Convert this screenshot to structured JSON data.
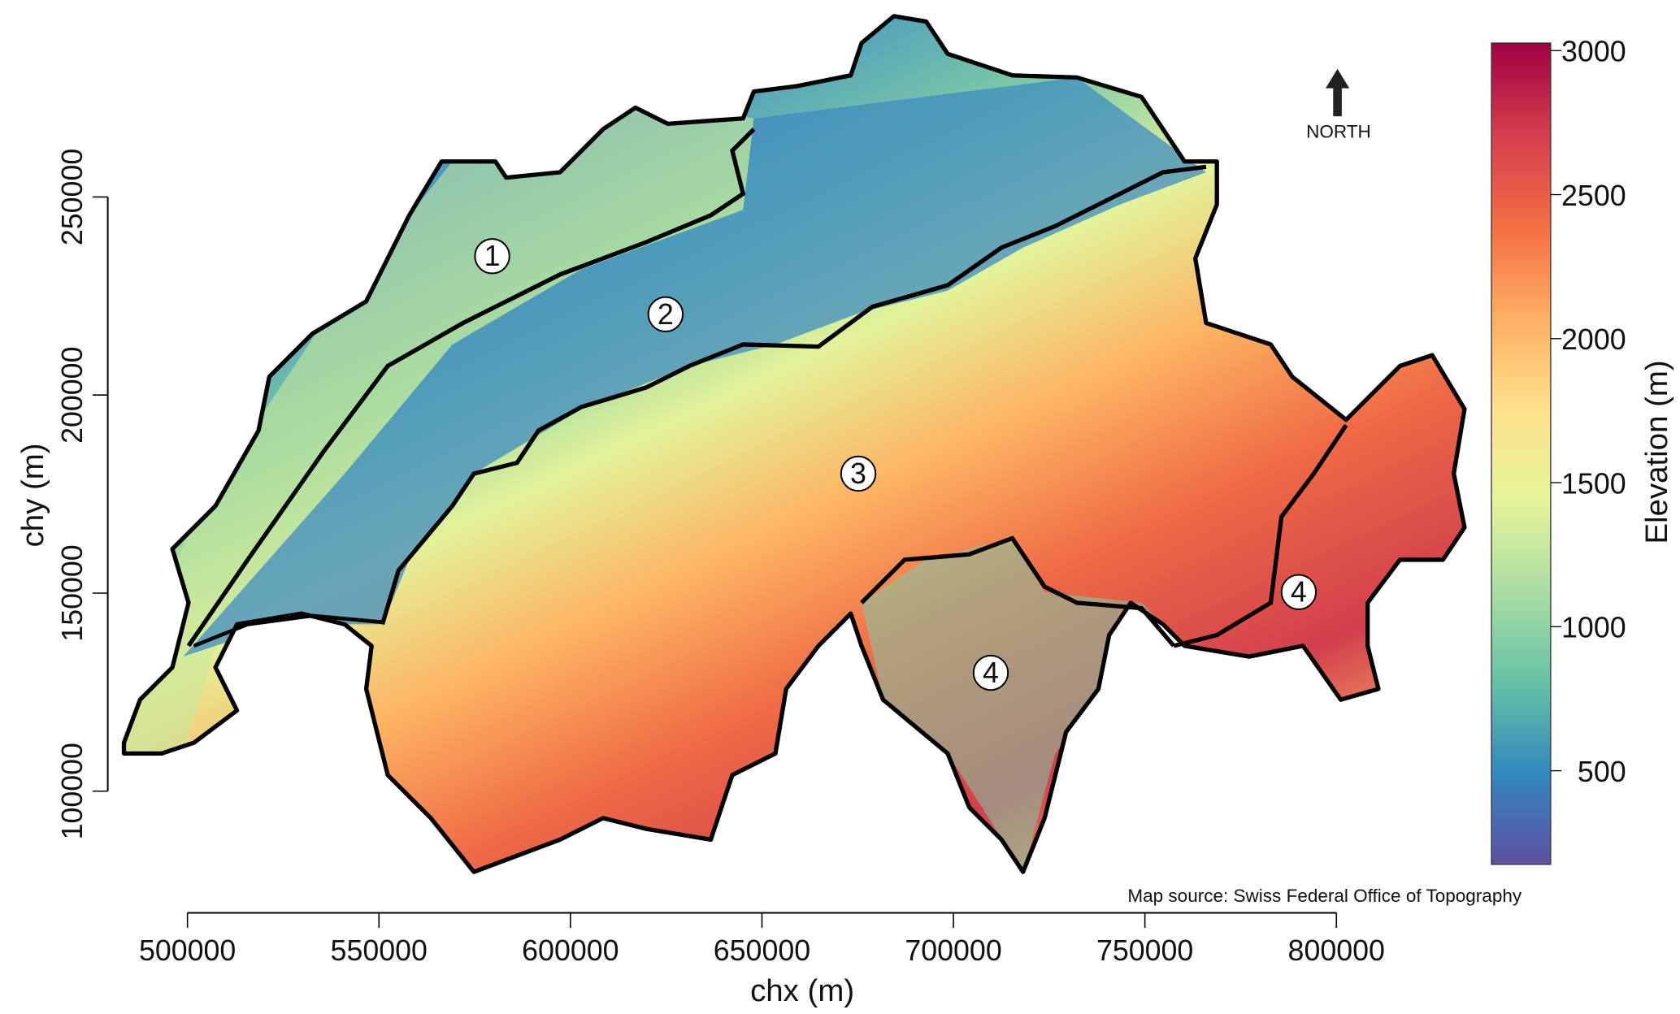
{
  "map": {
    "x_axis": {
      "label": "chx (m)",
      "ticks": [
        "500000",
        "550000",
        "600000",
        "650000",
        "700000",
        "750000",
        "800000"
      ]
    },
    "y_axis": {
      "label": "chy (m)",
      "ticks": [
        "100000",
        "150000",
        "200000",
        "250000"
      ]
    },
    "colorbar": {
      "label": "Elevation (m)",
      "ticks": [
        "500",
        "1000",
        "1500",
        "2000",
        "2500",
        "3000"
      ],
      "range": [
        150,
        3000
      ],
      "palette": [
        "#5e4fa2",
        "#3288bd",
        "#66c2a5",
        "#abdda4",
        "#e6f598",
        "#fee08b",
        "#fdae61",
        "#f46d43",
        "#d53e4f",
        "#9e0142"
      ]
    },
    "north": {
      "label": "NORTH",
      "icon": "arrow-up-icon"
    },
    "source": "Map source: Swiss Federal Office of Topography",
    "regions": [
      {
        "label": "1"
      },
      {
        "label": "2"
      },
      {
        "label": "3"
      },
      {
        "label": "4"
      },
      {
        "label": "4"
      }
    ]
  }
}
